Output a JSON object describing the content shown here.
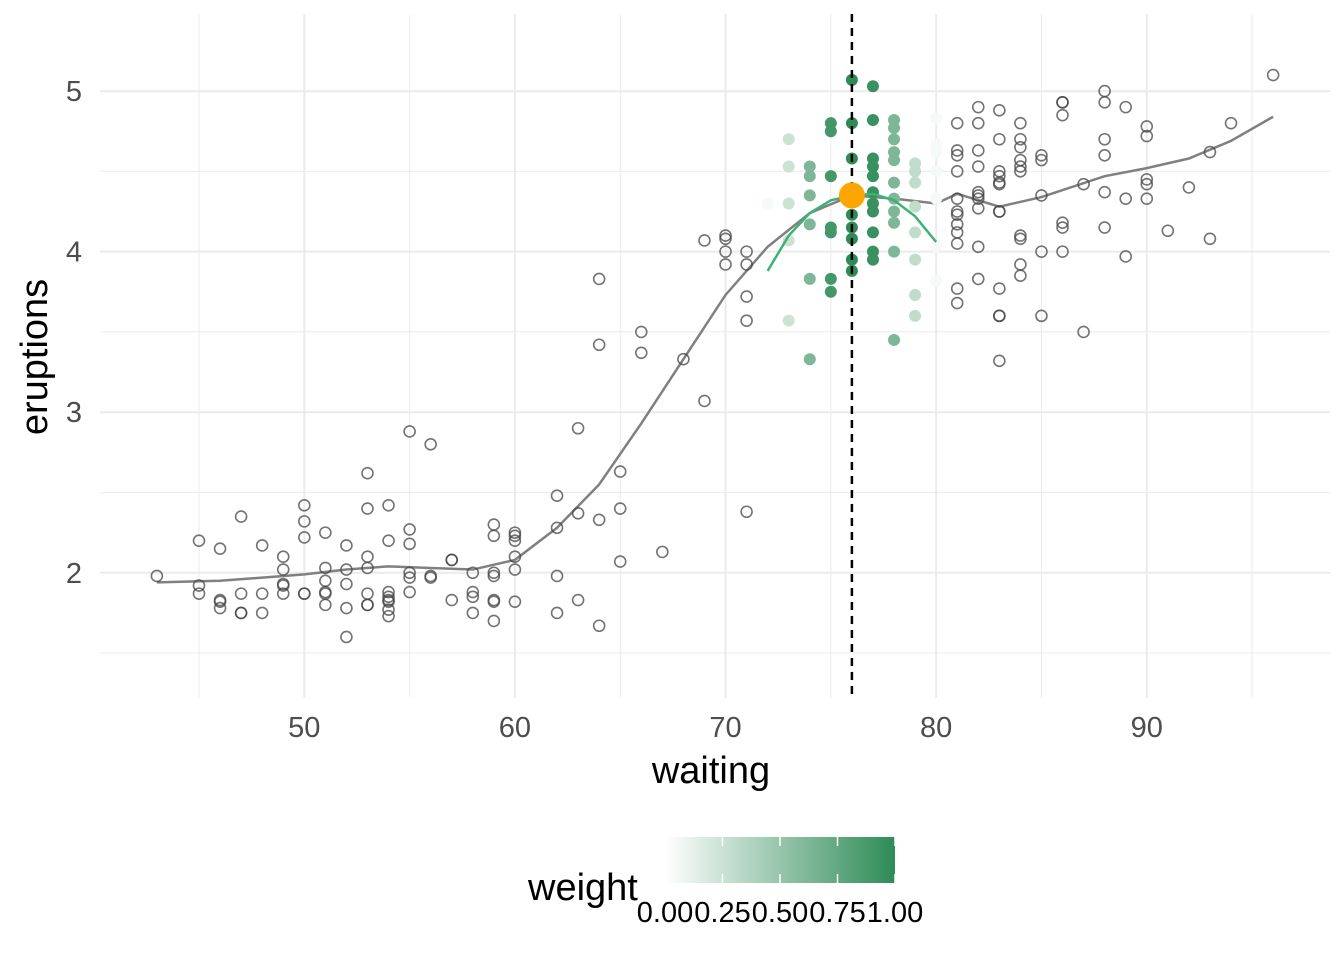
{
  "chart_data": {
    "type": "scatter",
    "xlabel": "waiting",
    "ylabel": "eruptions",
    "xlim": [
      40.3,
      98.7
    ],
    "ylim": [
      1.22,
      5.48
    ],
    "x_ticks": [
      50,
      60,
      70,
      80,
      90
    ],
    "y_ticks": [
      2,
      3,
      4,
      5
    ],
    "grid": true,
    "reference_x": 76,
    "focus_point": {
      "x": 76,
      "y": 4.35
    },
    "legend": {
      "title": "weight",
      "placement": "bottom",
      "ticks": [
        "0.00",
        "0.25",
        "0.50",
        "0.75",
        "1.00"
      ],
      "colors": {
        "low": "#ffffff",
        "high": "#2e8b57"
      }
    },
    "colors": {
      "points": "#444444",
      "weighted": "#2e8b57",
      "smooth_line": "#808080",
      "local_fit": "#3cb371",
      "focus": "#ffa500",
      "reference_line": "#000000",
      "grid": "#ebebeb"
    },
    "smooth_line": [
      [
        43,
        1.94
      ],
      [
        46,
        1.95
      ],
      [
        48,
        1.97
      ],
      [
        50,
        1.99
      ],
      [
        52,
        2.02
      ],
      [
        54,
        2.04
      ],
      [
        56,
        2.03
      ],
      [
        58,
        2.02
      ],
      [
        60,
        2.08
      ],
      [
        62,
        2.28
      ],
      [
        64,
        2.55
      ],
      [
        66,
        2.93
      ],
      [
        68,
        3.33
      ],
      [
        70,
        3.73
      ],
      [
        72,
        4.03
      ],
      [
        74,
        4.24
      ],
      [
        76,
        4.35
      ],
      [
        78,
        4.33
      ],
      [
        80,
        4.3
      ],
      [
        81,
        4.36
      ],
      [
        83,
        4.28
      ],
      [
        85,
        4.34
      ],
      [
        88,
        4.47
      ],
      [
        90,
        4.52
      ],
      [
        92,
        4.58
      ],
      [
        94,
        4.69
      ],
      [
        96,
        4.84
      ]
    ],
    "local_fit": [
      [
        72,
        3.88
      ],
      [
        73,
        4.1
      ],
      [
        74,
        4.24
      ],
      [
        75,
        4.32
      ],
      [
        76,
        4.35
      ],
      [
        77,
        4.36
      ],
      [
        78,
        4.32
      ],
      [
        79,
        4.22
      ],
      [
        80,
        4.06
      ]
    ],
    "weighted_points": [
      [
        72,
        4.3,
        0.05
      ],
      [
        73,
        4.7,
        0.25
      ],
      [
        73,
        4.53,
        0.25
      ],
      [
        73,
        4.3,
        0.25
      ],
      [
        73,
        4.07,
        0.25
      ],
      [
        73,
        3.57,
        0.25
      ],
      [
        74,
        4.53,
        0.62
      ],
      [
        74,
        4.47,
        0.62
      ],
      [
        74,
        4.35,
        0.62
      ],
      [
        74,
        4.17,
        0.62
      ],
      [
        74,
        3.83,
        0.62
      ],
      [
        74,
        3.33,
        0.62
      ],
      [
        75,
        4.8,
        0.9
      ],
      [
        75,
        4.75,
        0.9
      ],
      [
        75,
        4.47,
        0.9
      ],
      [
        75,
        4.15,
        0.9
      ],
      [
        75,
        4.12,
        0.9
      ],
      [
        75,
        3.83,
        0.9
      ],
      [
        75,
        3.75,
        0.9
      ],
      [
        76,
        5.07,
        1
      ],
      [
        76,
        4.8,
        1
      ],
      [
        76,
        4.58,
        1
      ],
      [
        76,
        4.35,
        1
      ],
      [
        76,
        4.23,
        1
      ],
      [
        76,
        4.15,
        1
      ],
      [
        76,
        4.08,
        1
      ],
      [
        76,
        3.95,
        1
      ],
      [
        76,
        3.88,
        1
      ],
      [
        77,
        5.03,
        0.95
      ],
      [
        77,
        4.82,
        0.95
      ],
      [
        77,
        4.58,
        0.95
      ],
      [
        77,
        4.53,
        0.95
      ],
      [
        77,
        4.47,
        0.95
      ],
      [
        77,
        4.37,
        0.95
      ],
      [
        77,
        4.3,
        0.95
      ],
      [
        77,
        4.25,
        0.95
      ],
      [
        77,
        4.12,
        0.95
      ],
      [
        77,
        4.0,
        0.95
      ],
      [
        77,
        3.95,
        0.95
      ],
      [
        78,
        4.82,
        0.62
      ],
      [
        78,
        4.77,
        0.62
      ],
      [
        78,
        4.7,
        0.62
      ],
      [
        78,
        4.62,
        0.62
      ],
      [
        78,
        4.57,
        0.62
      ],
      [
        78,
        4.43,
        0.62
      ],
      [
        78,
        4.33,
        0.62
      ],
      [
        78,
        4.25,
        0.62
      ],
      [
        78,
        4.18,
        0.62
      ],
      [
        78,
        4.0,
        0.62
      ],
      [
        78,
        3.45,
        0.62
      ],
      [
        79,
        4.55,
        0.3
      ],
      [
        79,
        4.5,
        0.3
      ],
      [
        79,
        4.43,
        0.3
      ],
      [
        79,
        4.28,
        0.3
      ],
      [
        79,
        4.12,
        0.3
      ],
      [
        79,
        3.95,
        0.3
      ],
      [
        79,
        3.73,
        0.3
      ],
      [
        79,
        3.6,
        0.3
      ],
      [
        80,
        4.83,
        0.05
      ],
      [
        80,
        4.67,
        0.05
      ],
      [
        80,
        4.62,
        0.05
      ],
      [
        80,
        4.5,
        0.05
      ],
      [
        80,
        4.33,
        0.05
      ],
      [
        80,
        4.03,
        0.05
      ],
      [
        80,
        3.82,
        0.05
      ]
    ],
    "points": [
      [
        43,
        1.98
      ],
      [
        45,
        2.2
      ],
      [
        45,
        1.92
      ],
      [
        45,
        1.87
      ],
      [
        46,
        2.15
      ],
      [
        46,
        1.83
      ],
      [
        46,
        1.82
      ],
      [
        46,
        1.78
      ],
      [
        47,
        2.35
      ],
      [
        47,
        1.87
      ],
      [
        47,
        1.75
      ],
      [
        47,
        1.75
      ],
      [
        48,
        2.17
      ],
      [
        48,
        1.87
      ],
      [
        48,
        1.75
      ],
      [
        49,
        2.1
      ],
      [
        49,
        2.02
      ],
      [
        49,
        1.93
      ],
      [
        49,
        1.92
      ],
      [
        49,
        1.87
      ],
      [
        50,
        2.42
      ],
      [
        50,
        2.32
      ],
      [
        50,
        2.22
      ],
      [
        50,
        1.87
      ],
      [
        50,
        1.87
      ],
      [
        51,
        2.25
      ],
      [
        51,
        2.03
      ],
      [
        51,
        1.95
      ],
      [
        51,
        1.88
      ],
      [
        51,
        1.87
      ],
      [
        51,
        1.8
      ],
      [
        52,
        2.17
      ],
      [
        52,
        2.02
      ],
      [
        52,
        1.93
      ],
      [
        52,
        1.78
      ],
      [
        52,
        1.6
      ],
      [
        53,
        2.62
      ],
      [
        53,
        2.4
      ],
      [
        53,
        2.1
      ],
      [
        53,
        2.03
      ],
      [
        53,
        1.87
      ],
      [
        53,
        1.8
      ],
      [
        53,
        1.8
      ],
      [
        54,
        2.42
      ],
      [
        54,
        2.2
      ],
      [
        54,
        1.88
      ],
      [
        54,
        1.85
      ],
      [
        54,
        1.83
      ],
      [
        54,
        1.82
      ],
      [
        54,
        1.77
      ],
      [
        54,
        1.73
      ],
      [
        55,
        2.88
      ],
      [
        55,
        2.27
      ],
      [
        55,
        2.18
      ],
      [
        55,
        2.0
      ],
      [
        55,
        1.97
      ],
      [
        55,
        1.88
      ],
      [
        56,
        2.8
      ],
      [
        56,
        1.98
      ],
      [
        56,
        1.97
      ],
      [
        57,
        2.08
      ],
      [
        57,
        2.08
      ],
      [
        57,
        1.83
      ],
      [
        58,
        2.0
      ],
      [
        58,
        1.88
      ],
      [
        58,
        1.85
      ],
      [
        58,
        1.75
      ],
      [
        59,
        2.3
      ],
      [
        59,
        2.23
      ],
      [
        59,
        2.0
      ],
      [
        59,
        1.98
      ],
      [
        59,
        1.83
      ],
      [
        59,
        1.82
      ],
      [
        59,
        1.7
      ],
      [
        60,
        2.25
      ],
      [
        60,
        2.23
      ],
      [
        60,
        2.2
      ],
      [
        60,
        2.1
      ],
      [
        60,
        2.02
      ],
      [
        60,
        1.82
      ],
      [
        62,
        2.48
      ],
      [
        62,
        2.28
      ],
      [
        62,
        1.98
      ],
      [
        62,
        1.75
      ],
      [
        63,
        2.9
      ],
      [
        63,
        2.37
      ],
      [
        63,
        1.83
      ],
      [
        64,
        3.83
      ],
      [
        64,
        3.42
      ],
      [
        64,
        2.33
      ],
      [
        64,
        1.67
      ],
      [
        65,
        2.63
      ],
      [
        65,
        2.4
      ],
      [
        65,
        2.07
      ],
      [
        66,
        3.5
      ],
      [
        66,
        3.37
      ],
      [
        67,
        2.13
      ],
      [
        68,
        3.33
      ],
      [
        69,
        4.07
      ],
      [
        69,
        3.07
      ],
      [
        70,
        4.1
      ],
      [
        70,
        4.08
      ],
      [
        70,
        4.0
      ],
      [
        70,
        3.92
      ],
      [
        71,
        4.0
      ],
      [
        71,
        3.92
      ],
      [
        71,
        3.72
      ],
      [
        71,
        3.57
      ],
      [
        71,
        2.38
      ],
      [
        81,
        4.8
      ],
      [
        81,
        4.63
      ],
      [
        81,
        4.6
      ],
      [
        81,
        4.5
      ],
      [
        81,
        4.33
      ],
      [
        81,
        4.25
      ],
      [
        81,
        4.23
      ],
      [
        81,
        4.17
      ],
      [
        81,
        4.12
      ],
      [
        81,
        4.05
      ],
      [
        81,
        3.77
      ],
      [
        81,
        3.68
      ],
      [
        82,
        4.9
      ],
      [
        82,
        4.8
      ],
      [
        82,
        4.63
      ],
      [
        82,
        4.53
      ],
      [
        82,
        4.37
      ],
      [
        82,
        4.35
      ],
      [
        82,
        4.33
      ],
      [
        82,
        4.27
      ],
      [
        82,
        4.03
      ],
      [
        82,
        3.83
      ],
      [
        83,
        4.88
      ],
      [
        83,
        4.7
      ],
      [
        83,
        4.5
      ],
      [
        83,
        4.47
      ],
      [
        83,
        4.43
      ],
      [
        83,
        4.42
      ],
      [
        83,
        4.25
      ],
      [
        83,
        4.25
      ],
      [
        83,
        3.77
      ],
      [
        83,
        3.6
      ],
      [
        83,
        3.6
      ],
      [
        83,
        3.32
      ],
      [
        84,
        4.8
      ],
      [
        84,
        4.7
      ],
      [
        84,
        4.65
      ],
      [
        84,
        4.57
      ],
      [
        84,
        4.53
      ],
      [
        84,
        4.5
      ],
      [
        84,
        4.1
      ],
      [
        84,
        4.08
      ],
      [
        84,
        3.92
      ],
      [
        84,
        3.85
      ],
      [
        85,
        4.6
      ],
      [
        85,
        4.57
      ],
      [
        85,
        4.35
      ],
      [
        85,
        4.0
      ],
      [
        85,
        3.6
      ],
      [
        86,
        4.93
      ],
      [
        86,
        4.93
      ],
      [
        86,
        4.85
      ],
      [
        86,
        4.18
      ],
      [
        86,
        4.15
      ],
      [
        86,
        4.0
      ],
      [
        87,
        4.42
      ],
      [
        87,
        3.5
      ],
      [
        88,
        5.0
      ],
      [
        88,
        4.93
      ],
      [
        88,
        4.7
      ],
      [
        88,
        4.6
      ],
      [
        88,
        4.37
      ],
      [
        88,
        4.15
      ],
      [
        89,
        4.9
      ],
      [
        89,
        4.33
      ],
      [
        89,
        3.97
      ],
      [
        90,
        4.78
      ],
      [
        90,
        4.72
      ],
      [
        90,
        4.45
      ],
      [
        90,
        4.42
      ],
      [
        90,
        4.33
      ],
      [
        91,
        4.13
      ],
      [
        92,
        4.4
      ],
      [
        93,
        4.62
      ],
      [
        93,
        4.08
      ],
      [
        94,
        4.8
      ],
      [
        96,
        5.1
      ]
    ]
  }
}
